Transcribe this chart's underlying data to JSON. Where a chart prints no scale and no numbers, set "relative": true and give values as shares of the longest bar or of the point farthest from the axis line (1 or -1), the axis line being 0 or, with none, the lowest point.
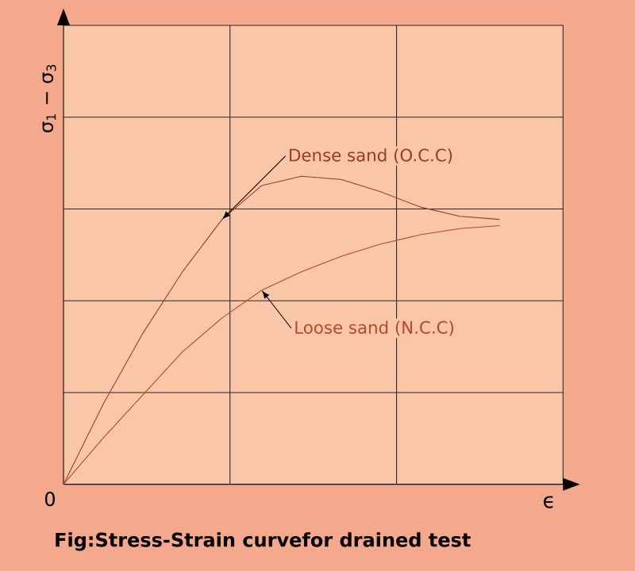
{
  "chart_data": {
    "type": "line",
    "relative": true,
    "title": "Fig:Stress-Strain curvefor drained test",
    "xlabel": "ϵ",
    "ylabel": "σ$_{1}$ − σ$_{3}$",
    "annotations": [
      "0"
    ],
    "grid": true,
    "legend": false,
    "categories": [
      null,
      null,
      null,
      null,
      null,
      null,
      null,
      null,
      null,
      null,
      null,
      null
    ],
    "series": [
      {
        "name": "Dense sand (O.C.C)",
        "color": "#9c3b28",
        "values": [
          0,
          0.26,
          0.49,
          0.69,
          0.86,
          0.97,
          1.0,
          0.99,
          0.95,
          0.9,
          0.87,
          0.86
        ]
      },
      {
        "name": "Loose sand (N.C.C)",
        "color": "#b5482e",
        "values": [
          0,
          0.15,
          0.29,
          0.43,
          0.54,
          0.63,
          0.69,
          0.74,
          0.78,
          0.81,
          0.83,
          0.84
        ]
      }
    ]
  }
}
